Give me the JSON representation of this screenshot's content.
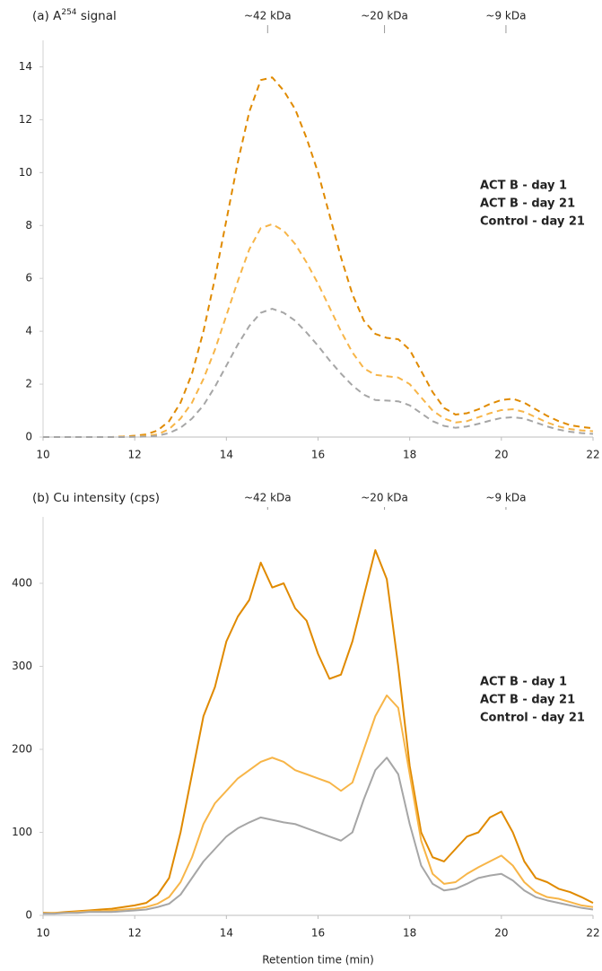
{
  "chart_data": [
    {
      "type": "line",
      "title": [
        {
          "text": "(a) A"
        },
        {
          "text": "254",
          "sup": true
        },
        {
          "text": " signal"
        }
      ],
      "x": [
        10,
        10.25,
        10.5,
        10.75,
        11,
        11.25,
        11.5,
        11.75,
        12,
        12.25,
        12.5,
        12.75,
        13,
        13.25,
        13.5,
        13.75,
        14,
        14.25,
        14.5,
        14.75,
        15,
        15.25,
        15.5,
        15.75,
        16,
        16.25,
        16.5,
        16.75,
        17,
        17.25,
        17.5,
        17.75,
        18,
        18.25,
        18.5,
        18.75,
        19,
        19.25,
        19.5,
        19.75,
        20,
        20.25,
        20.5,
        20.75,
        21,
        21.25,
        21.5,
        21.75,
        22
      ],
      "line_style": "dashed",
      "series": [
        {
          "name": "ACT B - day 1",
          "color": "#e08a00",
          "values": [
            0,
            0,
            0,
            0,
            0,
            0,
            0,
            0.02,
            0.05,
            0.1,
            0.25,
            0.6,
            1.3,
            2.4,
            4.0,
            6.0,
            8.2,
            10.4,
            12.3,
            13.5,
            13.6,
            13.1,
            12.4,
            11.3,
            10.0,
            8.4,
            6.8,
            5.4,
            4.4,
            3.9,
            3.75,
            3.7,
            3.3,
            2.5,
            1.7,
            1.1,
            0.85,
            0.9,
            1.05,
            1.25,
            1.4,
            1.45,
            1.3,
            1.05,
            0.8,
            0.6,
            0.45,
            0.38,
            0.33
          ]
        },
        {
          "name": "ACT B - day 21",
          "color": "#f7b548",
          "values": [
            0,
            0,
            0,
            0,
            0,
            0,
            0,
            0.01,
            0.02,
            0.05,
            0.1,
            0.3,
            0.7,
            1.3,
            2.2,
            3.3,
            4.6,
            5.9,
            7.1,
            7.9,
            8.05,
            7.8,
            7.3,
            6.6,
            5.8,
            4.9,
            4.0,
            3.2,
            2.6,
            2.35,
            2.3,
            2.25,
            2.0,
            1.5,
            1.0,
            0.7,
            0.55,
            0.6,
            0.75,
            0.9,
            1.02,
            1.05,
            0.95,
            0.75,
            0.55,
            0.4,
            0.3,
            0.25,
            0.22
          ]
        },
        {
          "name": "Control - day 21",
          "color": "#a6a6a6",
          "values": [
            0,
            0,
            0,
            0,
            0,
            0,
            0,
            0,
            0.01,
            0.02,
            0.05,
            0.15,
            0.35,
            0.7,
            1.2,
            1.9,
            2.7,
            3.5,
            4.2,
            4.7,
            4.85,
            4.7,
            4.4,
            3.95,
            3.45,
            2.9,
            2.4,
            1.95,
            1.6,
            1.4,
            1.38,
            1.35,
            1.2,
            0.9,
            0.6,
            0.42,
            0.35,
            0.4,
            0.5,
            0.62,
            0.72,
            0.75,
            0.7,
            0.55,
            0.4,
            0.28,
            0.2,
            0.15,
            0.12
          ]
        }
      ],
      "xlim": [
        10,
        22
      ],
      "xticks": [
        10,
        12,
        14,
        16,
        18,
        20,
        22
      ],
      "ylim": [
        0,
        15
      ],
      "yticks": [
        0,
        2,
        4,
        6,
        8,
        10,
        12,
        14
      ],
      "markers": [
        {
          "x": 14.9,
          "label": "~42 kDa"
        },
        {
          "x": 17.45,
          "label": "~20 kDa"
        },
        {
          "x": 20.1,
          "label": "~9 kDa"
        }
      ],
      "legend": "right"
    },
    {
      "type": "line",
      "title": [
        {
          "text": "(b) Cu intensity (cps)"
        }
      ],
      "x_label": "Retention time (min)",
      "x": [
        10,
        10.25,
        10.5,
        10.75,
        11,
        11.25,
        11.5,
        11.75,
        12,
        12.25,
        12.5,
        12.75,
        13,
        13.25,
        13.5,
        13.75,
        14,
        14.25,
        14.5,
        14.75,
        15,
        15.25,
        15.5,
        15.75,
        16,
        16.25,
        16.5,
        16.75,
        17,
        17.25,
        17.5,
        17.75,
        18,
        18.25,
        18.5,
        18.75,
        19,
        19.25,
        19.5,
        19.75,
        20,
        20.25,
        20.5,
        20.75,
        21,
        21.25,
        21.5,
        21.75,
        22
      ],
      "line_style": "solid",
      "series": [
        {
          "name": "ACT B - day 1",
          "color": "#e08a00",
          "values": [
            3,
            3,
            4,
            5,
            6,
            7,
            8,
            10,
            12,
            15,
            25,
            45,
            100,
            170,
            240,
            275,
            330,
            360,
            380,
            425,
            395,
            400,
            370,
            355,
            315,
            285,
            290,
            330,
            385,
            440,
            405,
            300,
            180,
            100,
            70,
            65,
            80,
            95,
            100,
            118,
            125,
            100,
            65,
            45,
            40,
            32,
            28,
            22,
            15
          ]
        },
        {
          "name": "ACT B - day 21",
          "color": "#f7b548",
          "values": [
            2,
            3,
            3,
            4,
            5,
            5,
            6,
            7,
            8,
            10,
            14,
            22,
            40,
            70,
            110,
            135,
            150,
            165,
            175,
            185,
            190,
            185,
            175,
            170,
            165,
            160,
            150,
            160,
            200,
            240,
            265,
            250,
            170,
            90,
            50,
            38,
            40,
            50,
            58,
            65,
            72,
            60,
            40,
            28,
            22,
            20,
            16,
            12,
            10
          ]
        },
        {
          "name": "Control - day 21",
          "color": "#a6a6a6",
          "values": [
            2,
            2,
            3,
            3,
            4,
            4,
            4,
            5,
            6,
            7,
            10,
            14,
            25,
            45,
            65,
            80,
            95,
            105,
            112,
            118,
            115,
            112,
            110,
            105,
            100,
            95,
            90,
            100,
            140,
            175,
            190,
            170,
            110,
            60,
            38,
            30,
            32,
            38,
            45,
            48,
            50,
            42,
            30,
            22,
            18,
            15,
            12,
            9,
            7
          ]
        }
      ],
      "xlim": [
        10,
        22
      ],
      "xticks": [
        10,
        12,
        14,
        16,
        18,
        20,
        22
      ],
      "ylim": [
        0,
        480
      ],
      "yticks": [
        0,
        100,
        200,
        300,
        400
      ],
      "markers": [
        {
          "x": 14.9,
          "label": "~42 kDa"
        },
        {
          "x": 17.45,
          "label": "~20 kDa"
        },
        {
          "x": 20.1,
          "label": "~9 kDa"
        }
      ],
      "legend": "right"
    }
  ]
}
